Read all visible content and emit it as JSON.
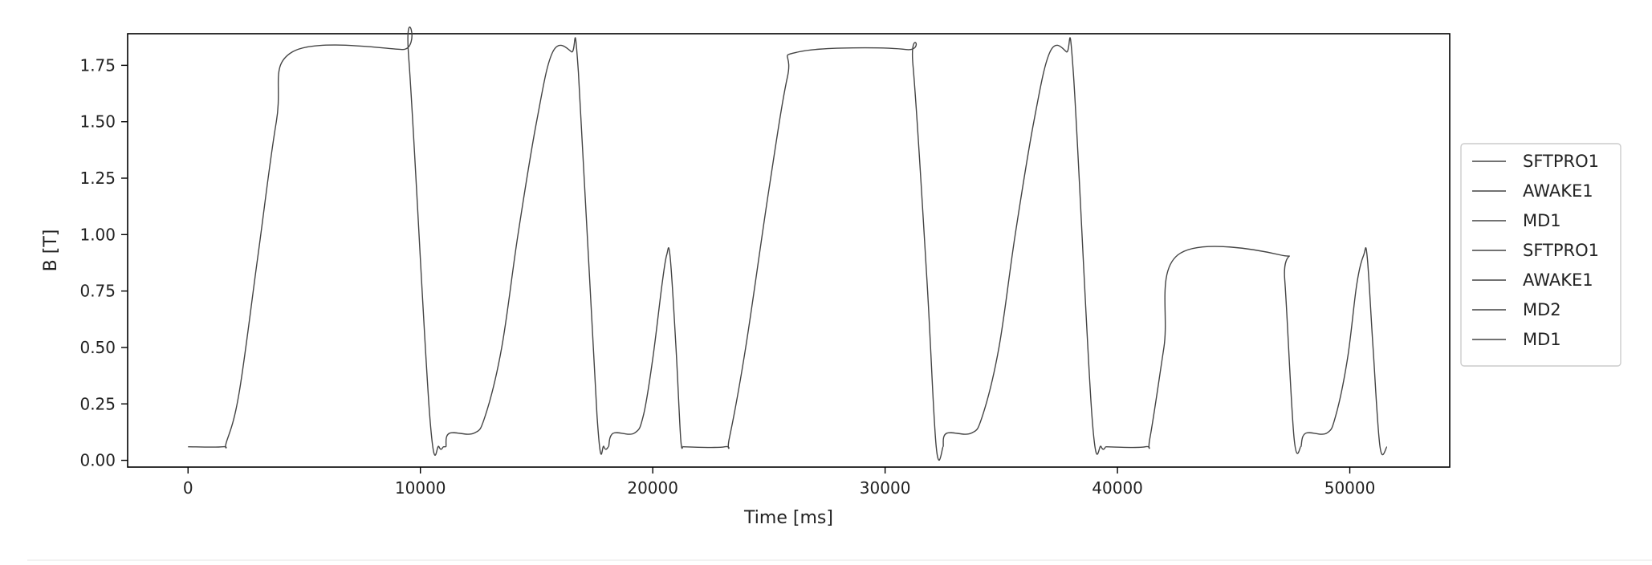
{
  "chart_data": {
    "type": "line",
    "title": "",
    "xlabel": "Time [ms]",
    "ylabel": "B [T]",
    "xlim": [
      -2600,
      54300
    ],
    "ylim": [
      -0.03,
      1.89
    ],
    "xticks": [
      0,
      10000,
      20000,
      30000,
      40000,
      50000
    ],
    "yticks": [
      0.0,
      0.25,
      0.5,
      0.75,
      1.0,
      1.25,
      1.5,
      1.75
    ],
    "xtick_labels": [
      "0",
      "10000",
      "20000",
      "30000",
      "40000",
      "50000"
    ],
    "ytick_labels": [
      "0.00",
      "0.25",
      "0.50",
      "0.75",
      "1.00",
      "1.25",
      "1.50",
      "1.75"
    ],
    "grid": false,
    "legend_position": "center-right outside",
    "line_color": "#444444",
    "legend": [
      "SFTPRO1",
      "AWAKE1",
      "MD1",
      "SFTPRO1",
      "AWAKE1",
      "MD2",
      "MD1"
    ],
    "series": [
      {
        "name": "SFTPRO1",
        "x": [
          0,
          1500,
          1650,
          2200,
          3000,
          3800,
          4500,
          9200,
          9500,
          10400,
          10800,
          11000,
          11100
        ],
        "y": [
          0.06,
          0.06,
          0.08,
          0.3,
          0.9,
          1.5,
          1.81,
          1.82,
          1.78,
          0.2,
          0.06,
          0.06,
          0.06
        ]
      },
      {
        "name": "AWAKE1",
        "x": [
          11100,
          11250,
          12300,
          12800,
          13500,
          14200,
          15000,
          15700,
          16500,
          16800,
          17600,
          17900,
          18100
        ],
        "y": [
          0.06,
          0.12,
          0.12,
          0.2,
          0.5,
          1.0,
          1.5,
          1.81,
          1.81,
          1.72,
          0.2,
          0.06,
          0.06
        ]
      },
      {
        "name": "MD1",
        "x": [
          18100,
          18300,
          19200,
          19600,
          20000,
          20400,
          20600,
          20750,
          21000,
          21200,
          21300
        ],
        "y": [
          0.06,
          0.12,
          0.12,
          0.2,
          0.45,
          0.78,
          0.91,
          0.9,
          0.5,
          0.1,
          0.06
        ]
      },
      {
        "name": "SFTPRO1",
        "x": [
          21300,
          23100,
          23300,
          24000,
          25000,
          25800,
          26300,
          30900,
          31200,
          31800,
          32200,
          32500
        ],
        "y": [
          0.06,
          0.06,
          0.1,
          0.5,
          1.2,
          1.7,
          1.81,
          1.82,
          1.75,
          0.8,
          0.06,
          0.06
        ]
      },
      {
        "name": "AWAKE1",
        "x": [
          32500,
          32650,
          33700,
          34200,
          34900,
          35600,
          36400,
          37100,
          37800,
          38100,
          38900,
          39300,
          39500
        ],
        "y": [
          0.06,
          0.12,
          0.12,
          0.2,
          0.5,
          1.0,
          1.5,
          1.81,
          1.81,
          1.72,
          0.2,
          0.06,
          0.06
        ]
      },
      {
        "name": "MD2",
        "x": [
          39500,
          41200,
          41400,
          42000,
          42600,
          47000,
          47200,
          47600,
          47900
        ],
        "y": [
          0.06,
          0.06,
          0.1,
          0.5,
          0.91,
          0.91,
          0.8,
          0.1,
          0.06
        ]
      },
      {
        "name": "MD1",
        "x": [
          47900,
          48100,
          49000,
          49400,
          49900,
          50300,
          50600,
          50750,
          51000,
          51300,
          51600
        ],
        "y": [
          0.06,
          0.12,
          0.12,
          0.2,
          0.45,
          0.78,
          0.91,
          0.9,
          0.5,
          0.06,
          0.06
        ]
      }
    ]
  }
}
